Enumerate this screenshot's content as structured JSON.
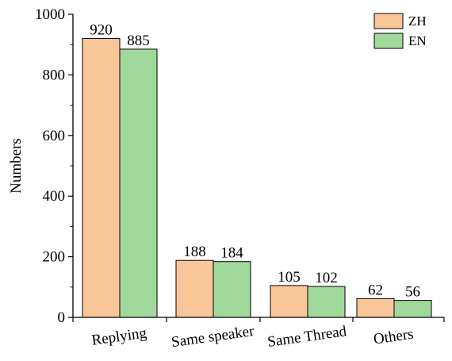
{
  "chart_data": {
    "type": "bar",
    "categories": [
      "Replying",
      "Same speaker",
      "Same Thread",
      "Others"
    ],
    "series": [
      {
        "name": "ZH",
        "values": [
          920,
          188,
          105,
          62
        ],
        "color": "#F9C699"
      },
      {
        "name": "EN",
        "values": [
          885,
          184,
          102,
          56
        ],
        "color": "#A1D89B"
      }
    ],
    "ylabel": "Numbers",
    "xlabel": "",
    "title": "",
    "ylim": [
      0,
      1000
    ],
    "yticks": [
      0,
      200,
      400,
      600,
      800,
      1000
    ],
    "grid": false,
    "legend_position": "top-right"
  }
}
